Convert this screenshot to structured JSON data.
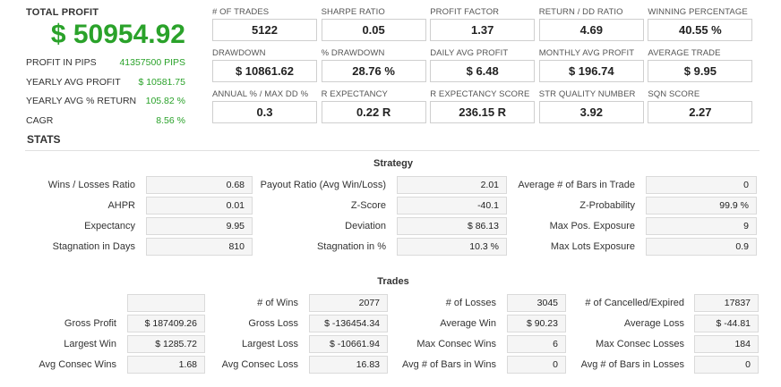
{
  "summary": {
    "total_profit_label": "TOTAL PROFIT",
    "total_profit_value": "$ 50954.92",
    "rows": [
      {
        "label": "PROFIT IN PIPS",
        "value": "41357500 PIPS"
      },
      {
        "label": "YEARLY AVG PROFIT",
        "value": "$ 10581.75"
      },
      {
        "label": "YEARLY AVG % RETURN",
        "value": "105.82 %"
      },
      {
        "label": "CAGR",
        "value": "8.56 %"
      }
    ]
  },
  "metrics": [
    {
      "label": "# OF TRADES",
      "value": "5122"
    },
    {
      "label": "SHARPE RATIO",
      "value": "0.05"
    },
    {
      "label": "PROFIT FACTOR",
      "value": "1.37"
    },
    {
      "label": "RETURN / DD RATIO",
      "value": "4.69"
    },
    {
      "label": "WINNING PERCENTAGE",
      "value": "40.55 %"
    },
    {
      "label": "DRAWDOWN",
      "value": "$ 10861.62"
    },
    {
      "label": "% DRAWDOWN",
      "value": "28.76 %"
    },
    {
      "label": "DAILY AVG PROFIT",
      "value": "$ 6.48"
    },
    {
      "label": "MONTHLY AVG PROFIT",
      "value": "$ 196.74"
    },
    {
      "label": "AVERAGE TRADE",
      "value": "$ 9.95"
    },
    {
      "label": "ANNUAL % / MAX DD %",
      "value": "0.3"
    },
    {
      "label": "R EXPECTANCY",
      "value": "0.22 R"
    },
    {
      "label": "R EXPECTANCY SCORE",
      "value": "236.15 R"
    },
    {
      "label": "STR QUALITY NUMBER",
      "value": "3.92"
    },
    {
      "label": "SQN SCORE",
      "value": "2.27"
    }
  ],
  "stats": {
    "title": "STATS",
    "strategy": {
      "title": "Strategy",
      "rows": [
        [
          {
            "label": "Wins / Losses Ratio",
            "value": "0.68"
          },
          {
            "label": "Payout Ratio (Avg Win/Loss)",
            "value": "2.01"
          },
          {
            "label": "Average # of Bars in Trade",
            "value": "0"
          }
        ],
        [
          {
            "label": "AHPR",
            "value": "0.01"
          },
          {
            "label": "Z-Score",
            "value": "-40.1"
          },
          {
            "label": "Z-Probability",
            "value": "99.9 %"
          }
        ],
        [
          {
            "label": "Expectancy",
            "value": "9.95"
          },
          {
            "label": "Deviation",
            "value": "$ 86.13"
          },
          {
            "label": "Max Pos. Exposure",
            "value": "9"
          }
        ],
        [
          {
            "label": "Stagnation in Days",
            "value": "810"
          },
          {
            "label": "Stagnation in %",
            "value": "10.3 %"
          },
          {
            "label": "Max Lots Exposure",
            "value": "0.9"
          }
        ]
      ]
    },
    "trades": {
      "title": "Trades",
      "rows": [
        [
          {
            "label": "",
            "value": ""
          },
          {
            "label": "# of Wins",
            "value": "2077"
          },
          {
            "label": "# of Losses",
            "value": "3045"
          },
          {
            "label": "# of Cancelled/Expired",
            "value": "17837"
          }
        ],
        [
          {
            "label": "Gross Profit",
            "value": "$ 187409.26"
          },
          {
            "label": "Gross Loss",
            "value": "$ -136454.34"
          },
          {
            "label": "Average Win",
            "value": "$ 90.23"
          },
          {
            "label": "Average Loss",
            "value": "$ -44.81"
          }
        ],
        [
          {
            "label": "Largest Win",
            "value": "$ 1285.72"
          },
          {
            "label": "Largest Loss",
            "value": "$ -10661.94"
          },
          {
            "label": "Max Consec Wins",
            "value": "6"
          },
          {
            "label": "Max Consec Losses",
            "value": "184"
          }
        ],
        [
          {
            "label": "Avg Consec Wins",
            "value": "1.68"
          },
          {
            "label": "Avg Consec Loss",
            "value": "16.83"
          },
          {
            "label": "Avg # of Bars in Wins",
            "value": "0"
          },
          {
            "label": "Avg # of Bars in Losses",
            "value": "0"
          }
        ]
      ]
    }
  }
}
